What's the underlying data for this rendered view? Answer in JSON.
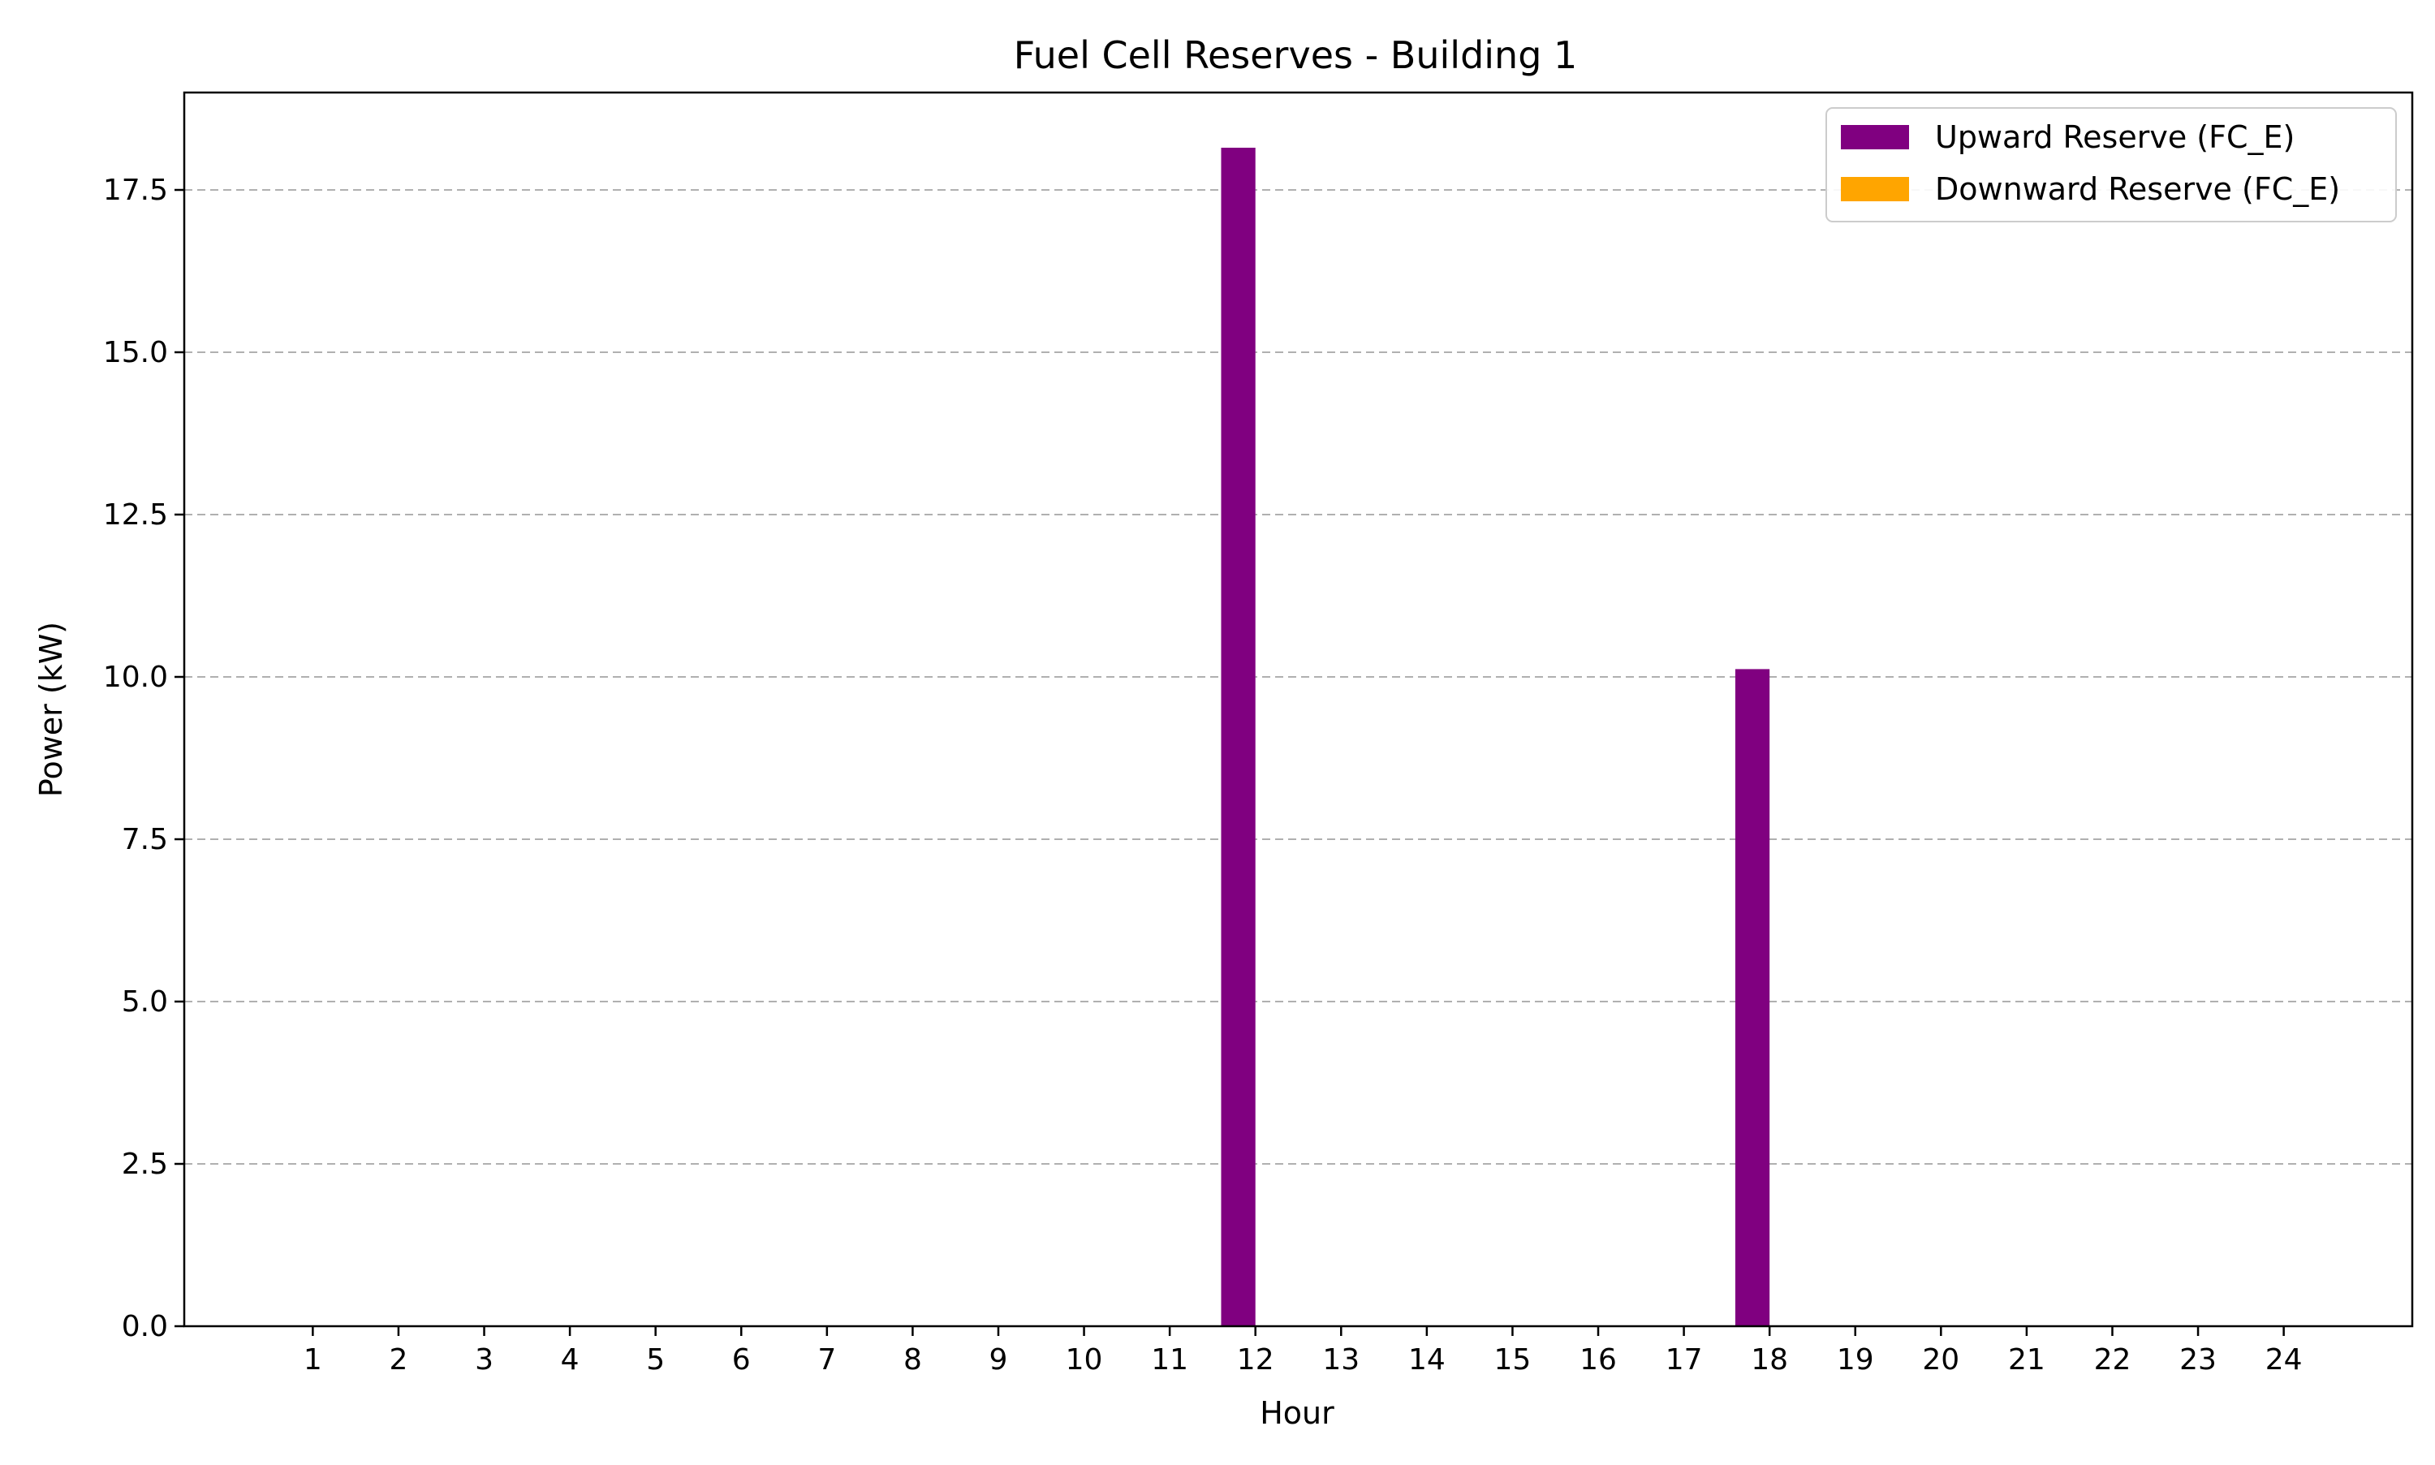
{
  "chart_data": {
    "type": "bar",
    "title": "Fuel Cell Reserves - Building 1",
    "xlabel": "Hour",
    "ylabel": "Power (kW)",
    "categories": [
      "1",
      "2",
      "3",
      "4",
      "5",
      "6",
      "7",
      "8",
      "9",
      "10",
      "11",
      "12",
      "13",
      "14",
      "15",
      "16",
      "17",
      "18",
      "19",
      "20",
      "21",
      "22",
      "23",
      "24"
    ],
    "series": [
      {
        "name": "Upward Reserve (FC_E)",
        "color": "#800080",
        "values": [
          0,
          0,
          0,
          0,
          0,
          0,
          0,
          0,
          0,
          0,
          0,
          18.15,
          0,
          0,
          0,
          0,
          0,
          10.12,
          0,
          0,
          0,
          0,
          0,
          0
        ]
      },
      {
        "name": "Downward Reserve (FC_E)",
        "color": "#FFA500",
        "values": [
          0,
          0,
          0,
          0,
          0,
          0,
          0,
          0,
          0,
          0,
          0,
          0,
          0,
          0,
          0,
          0,
          0,
          0,
          0,
          0,
          0,
          0,
          0,
          0
        ]
      }
    ],
    "ylim": [
      0,
      19
    ],
    "xlim": [
      -0.5,
      25.5
    ],
    "yticks": [
      0.0,
      2.5,
      5.0,
      7.5,
      10.0,
      12.5,
      15.0,
      17.5
    ],
    "ytick_labels": [
      "0.0",
      "2.5",
      "5.0",
      "7.5",
      "10.0",
      "12.5",
      "15.0",
      "17.5"
    ],
    "grid": "y-dashed",
    "legend_position": "top-right"
  }
}
